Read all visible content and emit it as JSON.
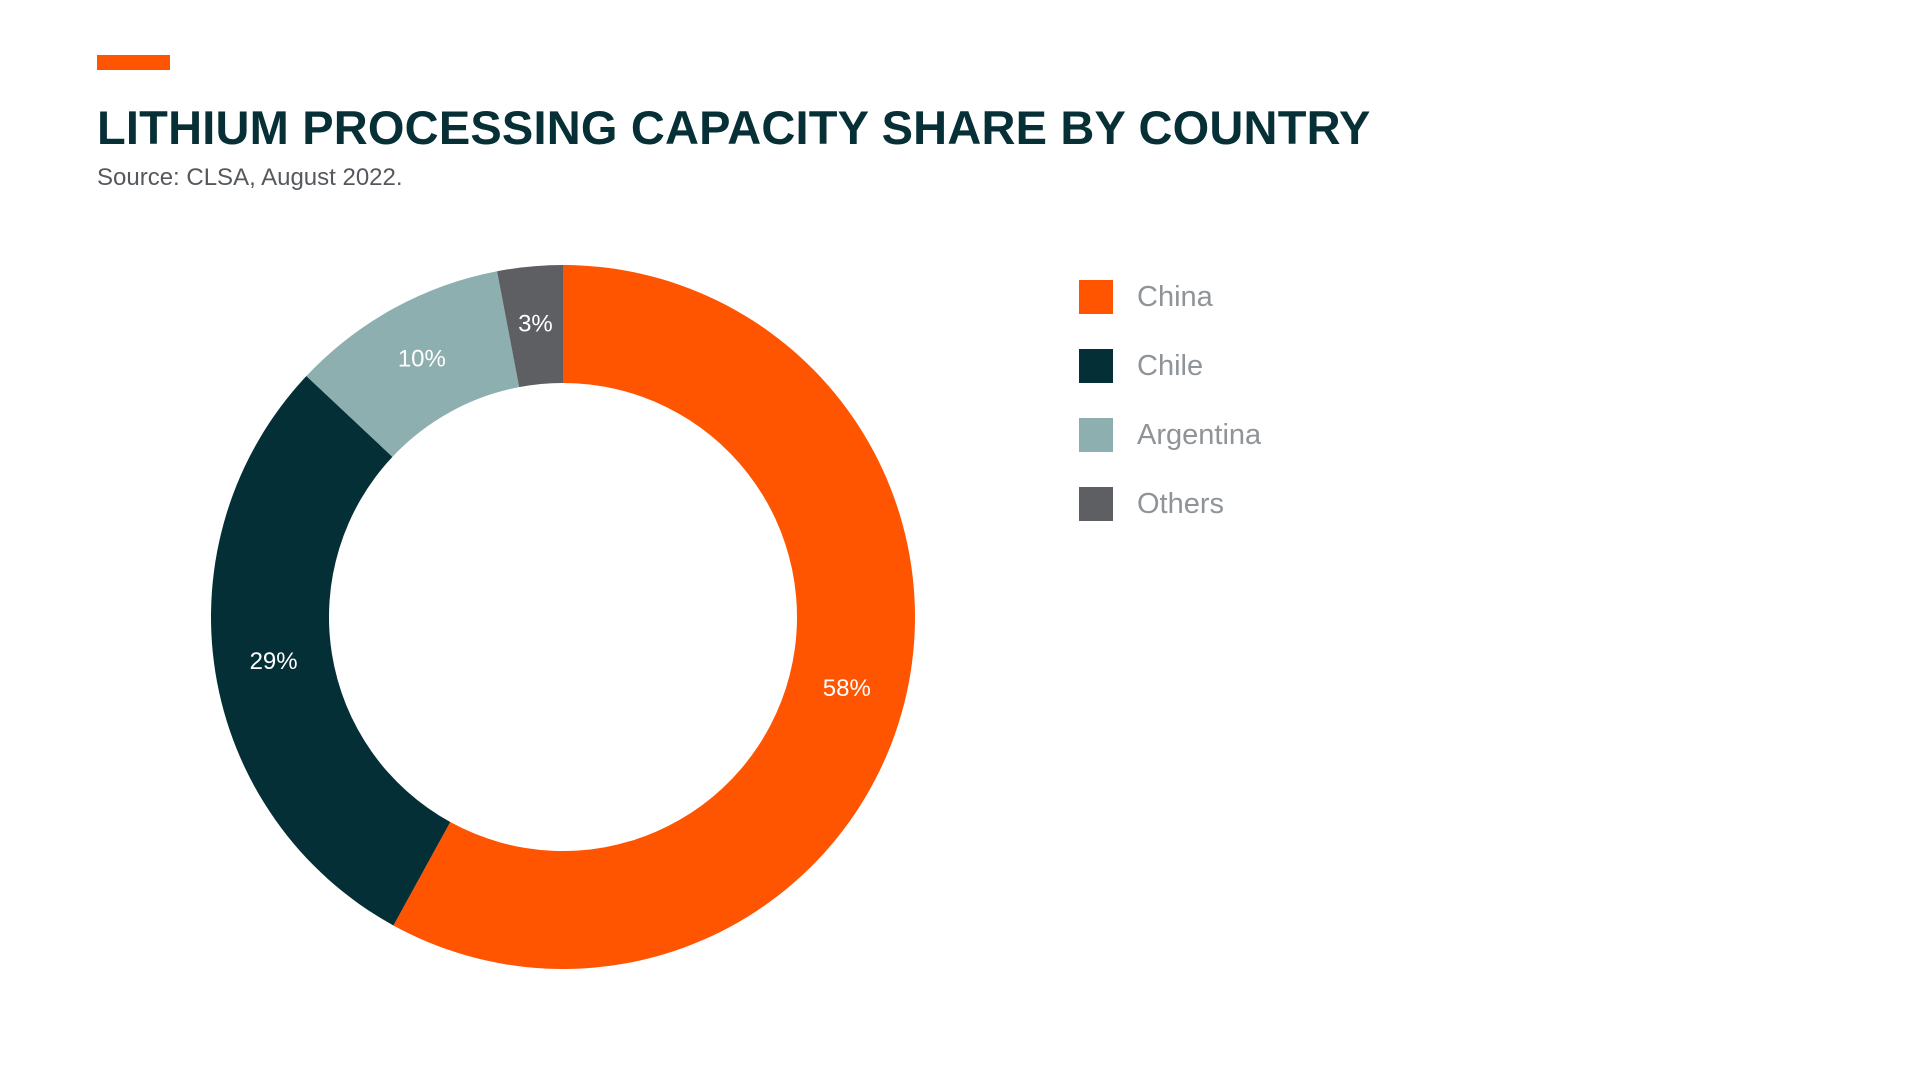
{
  "header": {
    "title": "LITHIUM PROCESSING CAPACITY SHARE BY COUNTRY",
    "source": "Source: CLSA, August 2022."
  },
  "colors": {
    "accent": "#ff5400",
    "title": "#062f36"
  },
  "chart_data": {
    "type": "pie",
    "variant": "donut",
    "title": "LITHIUM PROCESSING CAPACITY SHARE BY COUNTRY",
    "source": "Source: CLSA, August 2022.",
    "unit": "%",
    "start_angle": "12 o'clock, clockwise",
    "legend_position": "right",
    "slices": [
      {
        "name": "China",
        "value": 58,
        "label": "58%",
        "color": "#ff5400"
      },
      {
        "name": "Chile",
        "value": 29,
        "label": "29%",
        "color": "#042f36"
      },
      {
        "name": "Argentina",
        "value": 10,
        "label": "10%",
        "color": "#8eafaf"
      },
      {
        "name": "Others",
        "value": 3,
        "label": "3%",
        "color": "#5e5f63"
      }
    ]
  }
}
